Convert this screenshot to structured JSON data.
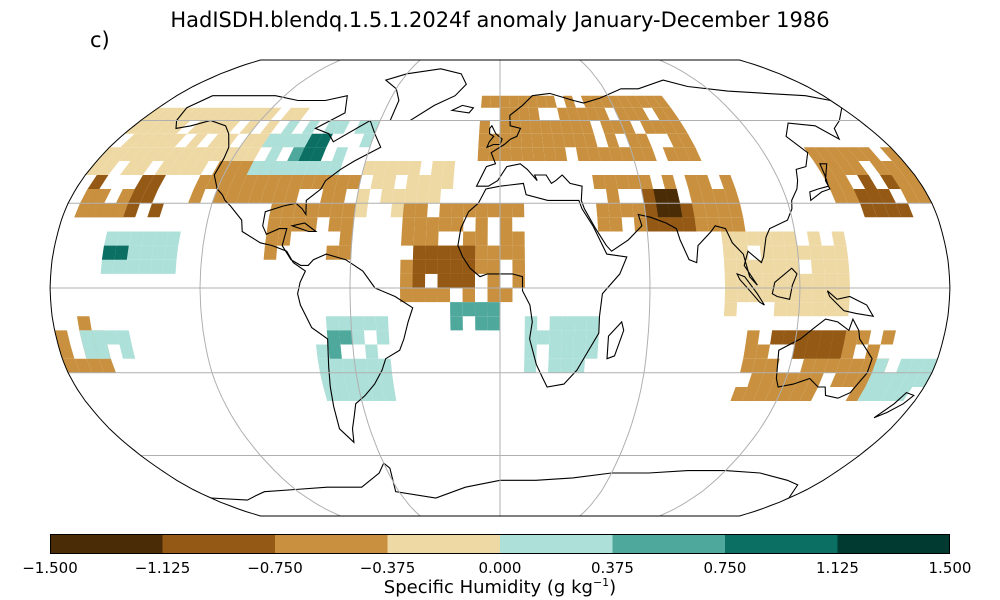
{
  "title": "HadISDH.blendq.1.5.1.2024f anomaly January-December 1986",
  "panel_label": "c)",
  "colorbar": {
    "label_text": "Specific Humidity (g kg",
    "label_exponent": "−1",
    "label_close": ")",
    "ticks": [
      "−1.500",
      "−1.125",
      "−0.750",
      "−0.375",
      "0.000",
      "0.375",
      "0.750",
      "1.125",
      "1.500"
    ],
    "tick_values": [
      -1.5,
      -1.125,
      -0.75,
      -0.375,
      0,
      0.375,
      0.75,
      1.125,
      1.5
    ],
    "colors": [
      "#4a2c07",
      "#945a15",
      "#c8903f",
      "#eed9a5",
      "#ade0d9",
      "#4fa89c",
      "#0b6f63",
      "#013a30"
    ]
  },
  "map": {
    "projection": "Robinson",
    "gridlines": true,
    "coastlines": true,
    "grid_resolution_deg": 5
  },
  "anomaly_regions": [
    {
      "lon": [
        -180,
        -100
      ],
      "lat": [
        40,
        65
      ],
      "class": 3
    },
    {
      "lon": [
        -130,
        -95
      ],
      "lat": [
        30,
        45
      ],
      "class": 2
    },
    {
      "lon": [
        -175,
        -140
      ],
      "lat": [
        25,
        40
      ],
      "class": 1
    },
    {
      "lon": [
        -175,
        -155
      ],
      "lat": [
        25,
        35
      ],
      "class": 2
    },
    {
      "lon": [
        -160,
        -130
      ],
      "lat": [
        5,
        20
      ],
      "class": 4
    },
    {
      "lon": [
        -160,
        -150
      ],
      "lat": [
        10,
        15
      ],
      "class": 6
    },
    {
      "lon": [
        -110,
        -60
      ],
      "lat": [
        40,
        60
      ],
      "class": 4
    },
    {
      "lon": [
        -95,
        -85
      ],
      "lat": [
        45,
        50
      ],
      "class": 5
    },
    {
      "lon": [
        -90,
        -80
      ],
      "lat": [
        45,
        52
      ],
      "class": 6
    },
    {
      "lon": [
        -95,
        -60
      ],
      "lat": [
        10,
        40
      ],
      "class": 2
    },
    {
      "lon": [
        -60,
        -20
      ],
      "lat": [
        25,
        45
      ],
      "class": 3
    },
    {
      "lon": [
        -40,
        10
      ],
      "lat": [
        -5,
        30
      ],
      "class": 2
    },
    {
      "lon": [
        -35,
        -10
      ],
      "lat": [
        0,
        15
      ],
      "class": 1
    },
    {
      "lon": [
        -10,
        30
      ],
      "lat": [
        45,
        70
      ],
      "class": 2
    },
    {
      "lon": [
        30,
        90
      ],
      "lat": [
        45,
        70
      ],
      "class": 2
    },
    {
      "lon": [
        40,
        100
      ],
      "lat": [
        20,
        40
      ],
      "class": 2
    },
    {
      "lon": [
        60,
        80
      ],
      "lat": [
        20,
        35
      ],
      "class": 1
    },
    {
      "lon": [
        65,
        75
      ],
      "lat": [
        25,
        35
      ],
      "class": 0
    },
    {
      "lon": [
        90,
        140
      ],
      "lat": [
        -10,
        20
      ],
      "class": 3
    },
    {
      "lon": [
        140,
        180
      ],
      "lat": [
        30,
        50
      ],
      "class": 2
    },
    {
      "lon": [
        150,
        170
      ],
      "lat": [
        25,
        40
      ],
      "class": 1
    },
    {
      "lon": [
        -180,
        -160
      ],
      "lat": [
        -30,
        -10
      ],
      "class": 2
    },
    {
      "lon": [
        -170,
        -150
      ],
      "lat": [
        -25,
        -15
      ],
      "class": 4
    },
    {
      "lon": [
        -75,
        -45
      ],
      "lat": [
        -40,
        -10
      ],
      "class": 4
    },
    {
      "lon": [
        -70,
        -60
      ],
      "lat": [
        -25,
        -15
      ],
      "class": 5
    },
    {
      "lon": [
        -20,
        0
      ],
      "lat": [
        -15,
        -5
      ],
      "class": 5
    },
    {
      "lon": [
        10,
        40
      ],
      "lat": [
        -30,
        -10
      ],
      "class": 4
    },
    {
      "lon": [
        100,
        160
      ],
      "lat": [
        -40,
        -15
      ],
      "class": 2
    },
    {
      "lon": [
        110,
        140
      ],
      "lat": [
        -25,
        -15
      ],
      "class": 1
    },
    {
      "lon": [
        155,
        180
      ],
      "lat": [
        -40,
        -25
      ],
      "class": 4
    }
  ]
}
